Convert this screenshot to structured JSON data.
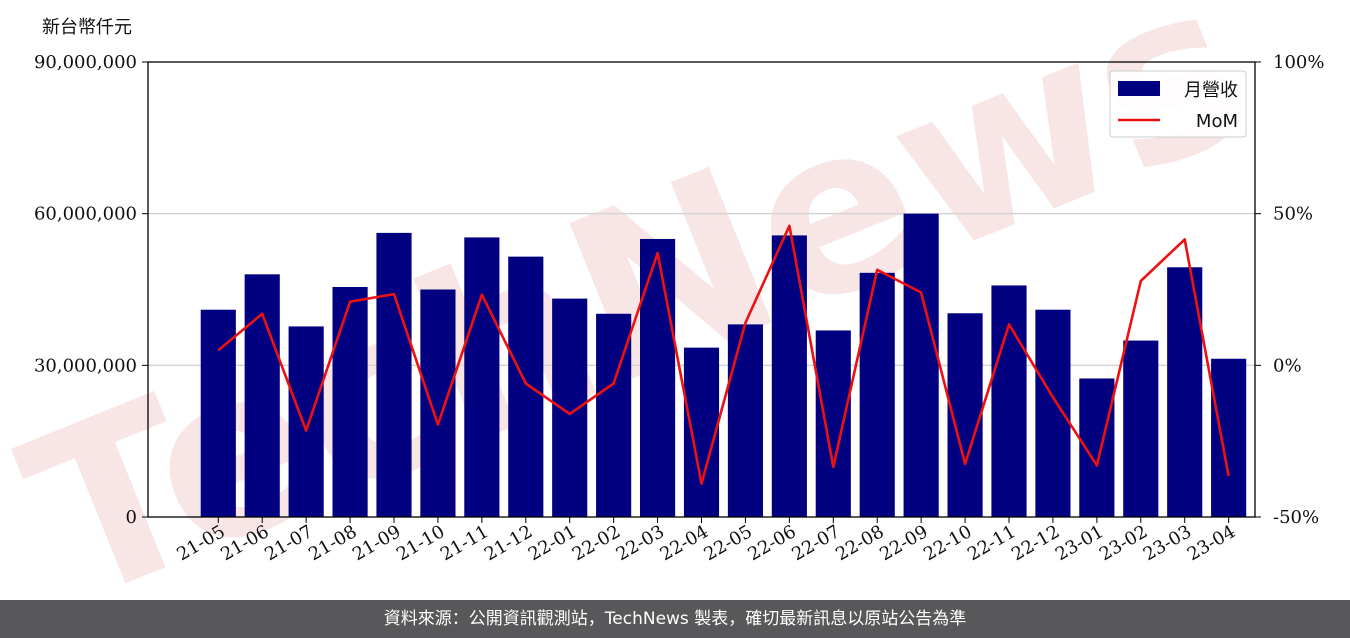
{
  "chart_data": {
    "type": "bar",
    "unit_label": "新台幣仟元",
    "categories": [
      "21-05",
      "21-06",
      "21-07",
      "21-08",
      "21-09",
      "21-10",
      "21-11",
      "21-12",
      "22-01",
      "22-02",
      "22-03",
      "22-04",
      "22-05",
      "22-06",
      "22-07",
      "22-08",
      "22-09",
      "22-10",
      "22-11",
      "22-12",
      "23-01",
      "23-02",
      "23-03",
      "23-04"
    ],
    "series": [
      {
        "name": "月營收",
        "type": "bar",
        "axis": "left",
        "color": "#000080",
        "values": [
          41000000,
          48000000,
          37700000,
          45500000,
          56200000,
          45000000,
          55300000,
          51500000,
          43200000,
          40200000,
          55000000,
          33500000,
          38100000,
          55700000,
          36900000,
          48300000,
          60000000,
          40300000,
          45800000,
          41000000,
          27400000,
          34900000,
          49400000,
          31300000
        ]
      },
      {
        "name": "MoM",
        "type": "line",
        "axis": "right",
        "color": "#ee1111",
        "values": [
          5,
          17,
          -21.5,
          21,
          23.5,
          -19.5,
          23.3,
          -6,
          -16,
          -6,
          37,
          -39,
          14,
          46,
          -33.5,
          31.5,
          24,
          -32.5,
          13.5,
          -10.5,
          -33,
          27.8,
          41.5,
          -36.5
        ]
      }
    ],
    "ylim_left": [
      0,
      90000000
    ],
    "yticks_left": [
      "0",
      "30,000,000",
      "60,000,000",
      "90,000,000"
    ],
    "ylim_right": [
      -50,
      100
    ],
    "yticks_right": [
      "-50%",
      "0%",
      "50%",
      "100%"
    ],
    "grid": "horizontal",
    "legend_position": "top-right"
  },
  "watermark": "TechNews",
  "footer_text": "資料來源：公開資訊觀測站，TechNews 製表，確切最新訊息以原站公告為準"
}
